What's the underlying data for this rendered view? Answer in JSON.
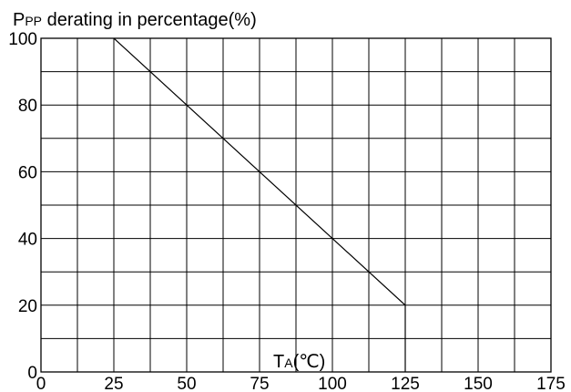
{
  "chart_data": {
    "type": "line",
    "title": "",
    "ylabel": {
      "main": "P",
      "sub": "PP",
      "rest": " derating in percentage(%)"
    },
    "xlabel": {
      "main": "T",
      "sub": "A",
      "rest": "(℃)"
    },
    "xlim": [
      0,
      175
    ],
    "ylim": [
      0,
      100
    ],
    "xticks": [
      0,
      25,
      50,
      75,
      100,
      125,
      150,
      175
    ],
    "yticks": [
      0,
      20,
      40,
      60,
      80,
      100
    ],
    "x_tick_labels": [
      "0",
      "25",
      "50",
      "75",
      "100",
      "125",
      "150",
      "175"
    ],
    "y_tick_labels": [
      "0",
      "20",
      "40",
      "60",
      "80",
      "100"
    ],
    "grid": true,
    "grid_step": {
      "x": 12.5,
      "y": 10
    },
    "series": [
      {
        "x": [
          25,
          125,
          125
        ],
        "y": [
          100,
          20,
          0
        ]
      }
    ],
    "colors": {
      "line": "#000000",
      "grid": "#000000",
      "background": "#ffffff"
    }
  }
}
